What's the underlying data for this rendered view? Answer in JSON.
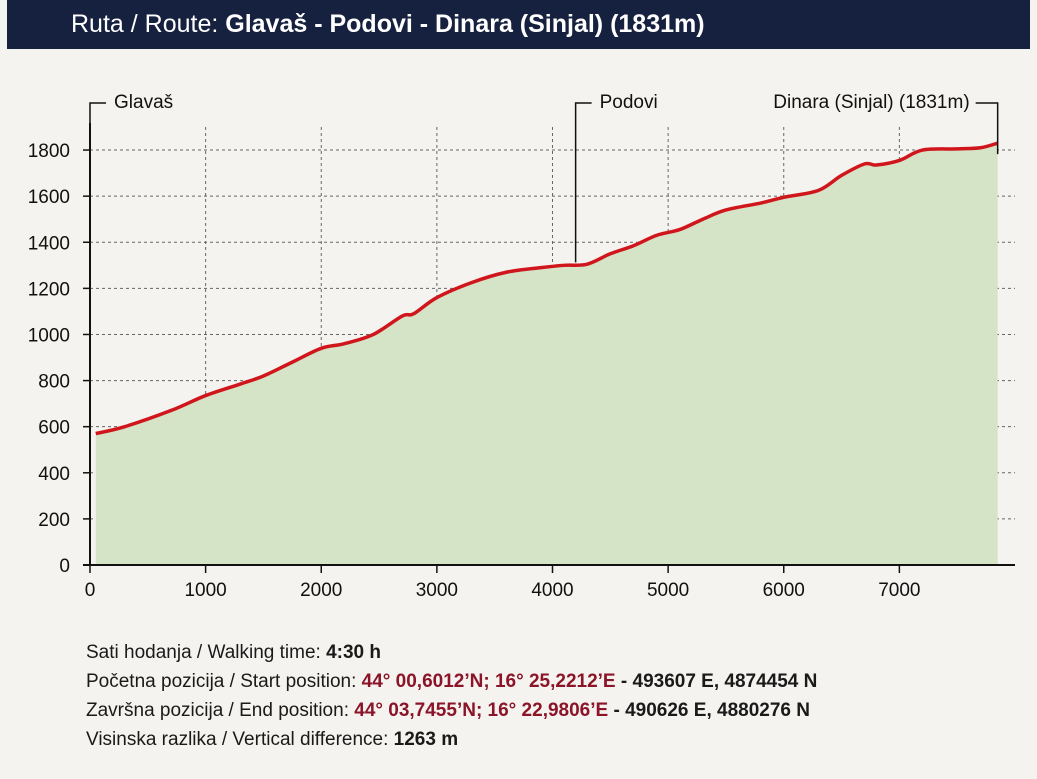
{
  "header": {
    "prefix": "Ruta / Route:",
    "route": "Glavaš - Podovi - Dinara (Sinjal) (1831m)"
  },
  "chart_data": {
    "type": "area",
    "xlim": [
      0,
      8000
    ],
    "ylim": [
      0,
      1900
    ],
    "x_ticks": [
      0,
      1000,
      2000,
      3000,
      4000,
      5000,
      6000,
      7000
    ],
    "y_ticks": [
      0,
      200,
      400,
      600,
      800,
      1000,
      1200,
      1400,
      1600,
      1800
    ],
    "grid": true,
    "colors": {
      "fill": "#d5e3c6",
      "line": "#d0161c",
      "grid": "#666666"
    },
    "points": [
      [
        50,
        570
      ],
      [
        300,
        600
      ],
      [
        700,
        670
      ],
      [
        1000,
        735
      ],
      [
        1300,
        785
      ],
      [
        1500,
        820
      ],
      [
        1750,
        880
      ],
      [
        2000,
        940
      ],
      [
        2200,
        960
      ],
      [
        2450,
        1000
      ],
      [
        2700,
        1080
      ],
      [
        2800,
        1090
      ],
      [
        3000,
        1160
      ],
      [
        3300,
        1225
      ],
      [
        3600,
        1270
      ],
      [
        3900,
        1290
      ],
      [
        4100,
        1300
      ],
      [
        4300,
        1305
      ],
      [
        4500,
        1350
      ],
      [
        4700,
        1385
      ],
      [
        4900,
        1430
      ],
      [
        5100,
        1455
      ],
      [
        5300,
        1500
      ],
      [
        5500,
        1540
      ],
      [
        5800,
        1570
      ],
      [
        6000,
        1595
      ],
      [
        6300,
        1625
      ],
      [
        6500,
        1690
      ],
      [
        6700,
        1740
      ],
      [
        6800,
        1735
      ],
      [
        7000,
        1755
      ],
      [
        7200,
        1800
      ],
      [
        7500,
        1805
      ],
      [
        7700,
        1810
      ],
      [
        7850,
        1830
      ]
    ],
    "annotations": [
      {
        "label": "Glavaš",
        "x": 0
      },
      {
        "label": "Podovi",
        "x": 4200
      },
      {
        "label": "Dinara (Sinjal) (1831m)",
        "x": 7850
      }
    ]
  },
  "info": {
    "walking_label": "Sati hodanja / Walking time:",
    "walking_value": "4:30 h",
    "start_label": "Početna pozicija / Start position:",
    "start_coord": "44° 00,6012’N; 16° 25,2212’E",
    "start_grid": "- 493607 E, 4874454 N",
    "end_label": "Završna pozicija / End position:",
    "end_coord": "44° 03,7455’N; 16° 22,9806’E",
    "end_grid": "- 490626 E, 4880276 N",
    "diff_label": "Visinska razlika / Vertical difference:",
    "diff_value": "1263 m"
  }
}
